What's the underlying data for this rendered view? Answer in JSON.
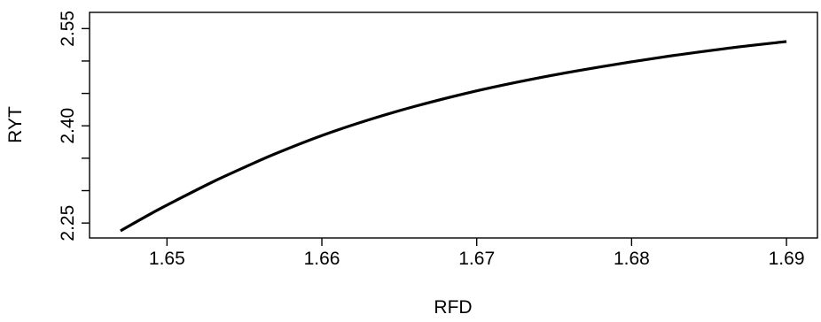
{
  "chart_data": {
    "type": "line",
    "title": "",
    "xlabel": "RFD",
    "ylabel": "RYT",
    "xlim": [
      1.645,
      1.692
    ],
    "ylim": [
      2.227,
      2.575
    ],
    "x_ticks": [
      1.65,
      1.66,
      1.67,
      1.68,
      1.69
    ],
    "x_tick_labels": [
      "1.65",
      "1.66",
      "1.67",
      "1.68",
      "1.69"
    ],
    "y_ticks": [
      2.25,
      2.3,
      2.35,
      2.4,
      2.45,
      2.5,
      2.55
    ],
    "y_tick_labels": [
      "2.25",
      "",
      "",
      "2.40",
      "",
      "",
      "2.55"
    ],
    "grid": false,
    "legend": "none",
    "series": [
      {
        "color": "#000000",
        "x": [
          1.647,
          1.649,
          1.651,
          1.653,
          1.655,
          1.657,
          1.66,
          1.663,
          1.666,
          1.67,
          1.674,
          1.678,
          1.682,
          1.686,
          1.69
        ],
        "y": [
          2.238,
          2.265,
          2.29,
          2.314,
          2.336,
          2.357,
          2.385,
          2.409,
          2.43,
          2.454,
          2.474,
          2.491,
          2.506,
          2.519,
          2.53
        ]
      }
    ]
  }
}
